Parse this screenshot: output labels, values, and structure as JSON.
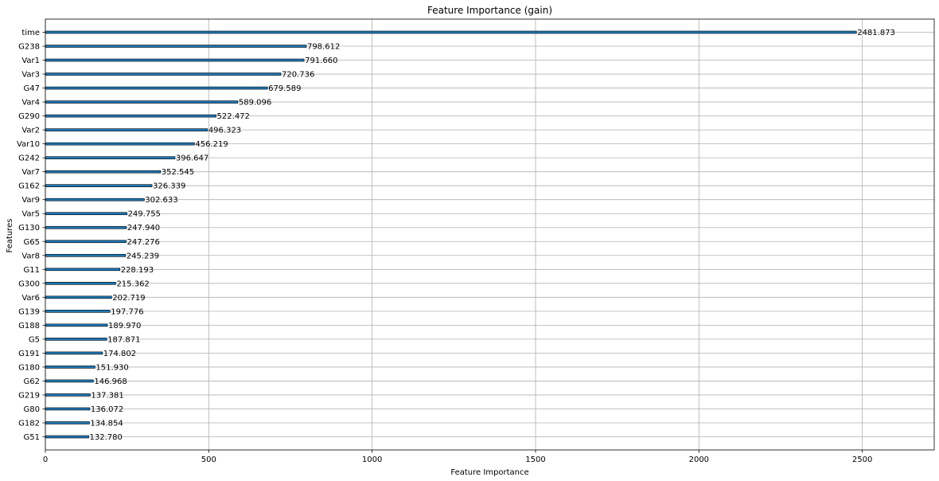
{
  "chart_data": {
    "type": "bar",
    "orientation": "horizontal",
    "title": "Feature Importance (gain)",
    "xlabel": "Feature Importance",
    "ylabel": "Features",
    "xlim": [
      0,
      2720
    ],
    "xticks": [
      0,
      500,
      1000,
      1500,
      2000,
      2500
    ],
    "grid": true,
    "bar_color": "#1f77b4",
    "categories": [
      "time",
      "G238",
      "Var1",
      "Var3",
      "G47",
      "Var4",
      "G290",
      "Var2",
      "Var10",
      "G242",
      "Var7",
      "G162",
      "Var9",
      "Var5",
      "G130",
      "G65",
      "Var8",
      "G11",
      "G300",
      "Var6",
      "G139",
      "G188",
      "G5",
      "G191",
      "G180",
      "G62",
      "G219",
      "G80",
      "G182",
      "G51"
    ],
    "values": [
      2481.873,
      798.612,
      791.66,
      720.736,
      679.589,
      589.096,
      522.472,
      496.323,
      456.219,
      396.647,
      352.545,
      326.339,
      302.633,
      249.755,
      247.94,
      247.276,
      245.239,
      228.193,
      215.362,
      202.719,
      197.776,
      189.97,
      187.871,
      174.802,
      151.93,
      146.968,
      137.381,
      136.072,
      134.854,
      132.78
    ],
    "value_labels": [
      "2481.873",
      "798.612",
      "791.660",
      "720.736",
      "679.589",
      "589.096",
      "522.472",
      "496.323",
      "456.219",
      "396.647",
      "352.545",
      "326.339",
      "302.633",
      "249.755",
      "247.940",
      "247.276",
      "245.239",
      "228.193",
      "215.362",
      "202.719",
      "197.776",
      "189.970",
      "187.871",
      "174.802",
      "151.930",
      "146.968",
      "137.381",
      "136.072",
      "134.854",
      "132.780"
    ]
  }
}
